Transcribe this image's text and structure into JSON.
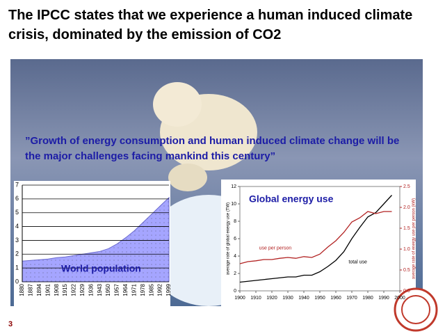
{
  "title": "The IPCC states that we experience a human induced climate crisis, dominated by the emission of CO2",
  "quote": "”Growth of energy consumption and human induced climate change will be the major challenges facing mankind this century”",
  "page_number": "3",
  "chart_data": [
    {
      "type": "area",
      "title": "World population",
      "categories": [
        "1880",
        "1887",
        "1894",
        "1901",
        "1908",
        "1915",
        "1922",
        "1929",
        "1936",
        "1943",
        "1950",
        "1957",
        "1964",
        "1971",
        "1978",
        "1985",
        "1992",
        "1999"
      ],
      "values": [
        1.5,
        1.55,
        1.6,
        1.65,
        1.75,
        1.8,
        1.9,
        2.0,
        2.1,
        2.2,
        2.4,
        2.75,
        3.2,
        3.7,
        4.3,
        4.9,
        5.5,
        6.1
      ],
      "color": "#a5a5ff",
      "ylim": [
        0,
        7
      ],
      "yticks": [
        0,
        1,
        2,
        3,
        4,
        5,
        6,
        7
      ],
      "grid": true
    },
    {
      "type": "line",
      "title": "Global energy use",
      "x": [
        1900,
        1905,
        1910,
        1915,
        1920,
        1925,
        1930,
        1935,
        1940,
        1945,
        1950,
        1955,
        1960,
        1965,
        1970,
        1975,
        1980,
        1985,
        1990,
        1995
      ],
      "xlim": [
        1900,
        2000
      ],
      "xticks": [
        1900,
        1910,
        1920,
        1930,
        1940,
        1950,
        1960,
        1970,
        1980,
        1990,
        2000
      ],
      "ylim": [
        0,
        12
      ],
      "yticks": [
        0,
        2,
        4,
        6,
        8,
        10,
        12
      ],
      "y2lim": [
        0,
        2.5
      ],
      "y2ticks": [
        {
          "value": 0,
          "label": "0.0"
        },
        0.5,
        {
          "value": 1,
          "label": "1.0"
        },
        1.5,
        {
          "value": 2,
          "label": "2.0"
        },
        2.5
      ],
      "ylabel": "average rate of global energy use (TW)",
      "y2label": "average rate of energy use per person (kW)",
      "series": [
        {
          "name": "total use",
          "color": "#000000",
          "values": [
            1.0,
            1.1,
            1.2,
            1.3,
            1.4,
            1.5,
            1.6,
            1.6,
            1.8,
            1.8,
            2.2,
            2.8,
            3.5,
            4.5,
            6.0,
            7.3,
            8.5,
            9.0,
            10.0,
            11.0
          ]
        },
        {
          "name": "use per person",
          "color": "#b22222",
          "axis": "y2",
          "values": [
            0.65,
            0.7,
            0.72,
            0.75,
            0.75,
            0.78,
            0.8,
            0.78,
            0.82,
            0.8,
            0.88,
            1.05,
            1.2,
            1.4,
            1.65,
            1.75,
            1.9,
            1.85,
            1.9,
            1.9
          ]
        }
      ]
    }
  ]
}
